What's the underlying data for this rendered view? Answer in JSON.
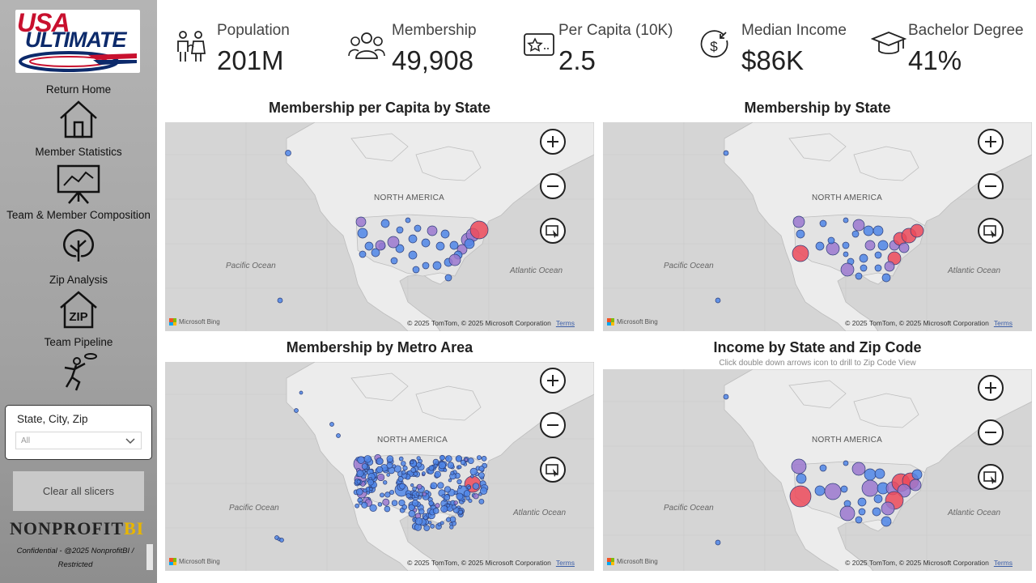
{
  "sidebar": {
    "logo_line1": "USA",
    "logo_line2": "ULTIMATE",
    "nav": [
      {
        "label": "Return Home",
        "icon": "home-icon"
      },
      {
        "label": "Member Statistics",
        "icon": "presentation-chart-icon"
      },
      {
        "label": "Team & Member Composition",
        "icon": "tree-icon"
      },
      {
        "label": "Zip Analysis",
        "icon": "zip-house-icon"
      },
      {
        "label": "Team Pipeline",
        "icon": "frisbee-player-icon"
      }
    ],
    "slicer": {
      "title": "State, City, Zip",
      "value": "All"
    },
    "clear_button": "Clear all slicers",
    "brand_main": "NONPROFIT",
    "brand_accent": "BI",
    "confidential": "Confidential - @2025 NonprofitBI / Restricted"
  },
  "kpis": [
    {
      "label": "Population",
      "value": "201M",
      "icon": "people-icon"
    },
    {
      "label": "Membership",
      "value": "49,908",
      "icon": "group-icon"
    },
    {
      "label": "Per Capita (10K)",
      "value": "2.5",
      "icon": "star-card-icon"
    },
    {
      "label": "Median Income",
      "value": "$86K",
      "icon": "income-dollar-icon"
    },
    {
      "label": "Bachelor Degree",
      "value": "41%",
      "icon": "graduation-cap-icon"
    }
  ],
  "maps": [
    {
      "title": "Membership per Capita by State",
      "subtitle": ""
    },
    {
      "title": "Membership by State",
      "subtitle": ""
    },
    {
      "title": "Membership by Metro Area",
      "subtitle": ""
    },
    {
      "title": "Income by State and Zip Code",
      "subtitle": "Click double down arrows icon to drill to Zip Code View"
    }
  ],
  "map_labels": {
    "continent": "NORTH AMERICA",
    "pacific": "Pacific Ocean",
    "atlantic": "Atlantic Ocean",
    "bing": "Microsoft Bing",
    "copyright": "© 2025 TomTom, © 2025 Microsoft Corporation",
    "terms": "Terms"
  },
  "colors": {
    "low": "#4f86e8",
    "mid": "#9b78cf",
    "high": "#ec4a5a",
    "map_bg": "#d5d5d5",
    "land": "#ececec"
  }
}
